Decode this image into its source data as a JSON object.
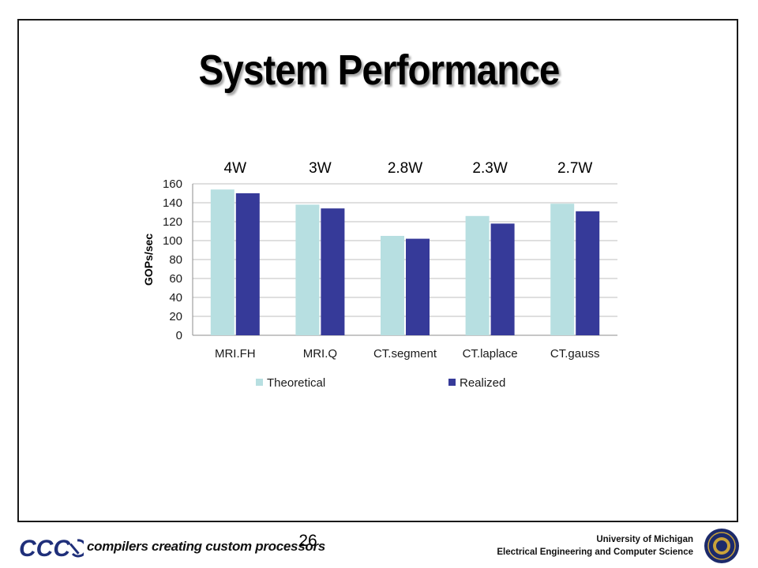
{
  "slide": {
    "title": "System Performance",
    "page_number": "26"
  },
  "footer": {
    "logo_text": "CCC",
    "tagline": "compilers creating custom processors",
    "university": "University of Michigan",
    "department": "Electrical Engineering and Computer Science"
  },
  "colors": {
    "theoretical": "#b7dfe1",
    "realized": "#363a99",
    "logo_blue": "#1f2f7a",
    "seal_blue": "#1c2a6b",
    "seal_gold": "#c9a23a"
  },
  "chart_data": {
    "type": "bar",
    "title": "",
    "xlabel": "",
    "ylabel": "GOPs/sec",
    "categories": [
      "MRI.FH",
      "MRI.Q",
      "CT.segment",
      "CT.laplace",
      "CT.gauss"
    ],
    "annotations": [
      "4W",
      "3W",
      "2.8W",
      "2.3W",
      "2.7W"
    ],
    "series": [
      {
        "name": "Theoretical",
        "values": [
          154,
          138,
          105,
          126,
          139
        ]
      },
      {
        "name": "Realized",
        "values": [
          150,
          134,
          102,
          118,
          131
        ]
      }
    ],
    "ylim": [
      0,
      160
    ],
    "yticks": [
      0,
      20,
      40,
      60,
      80,
      100,
      120,
      140,
      160
    ],
    "grid": true,
    "legend_position": "bottom"
  }
}
